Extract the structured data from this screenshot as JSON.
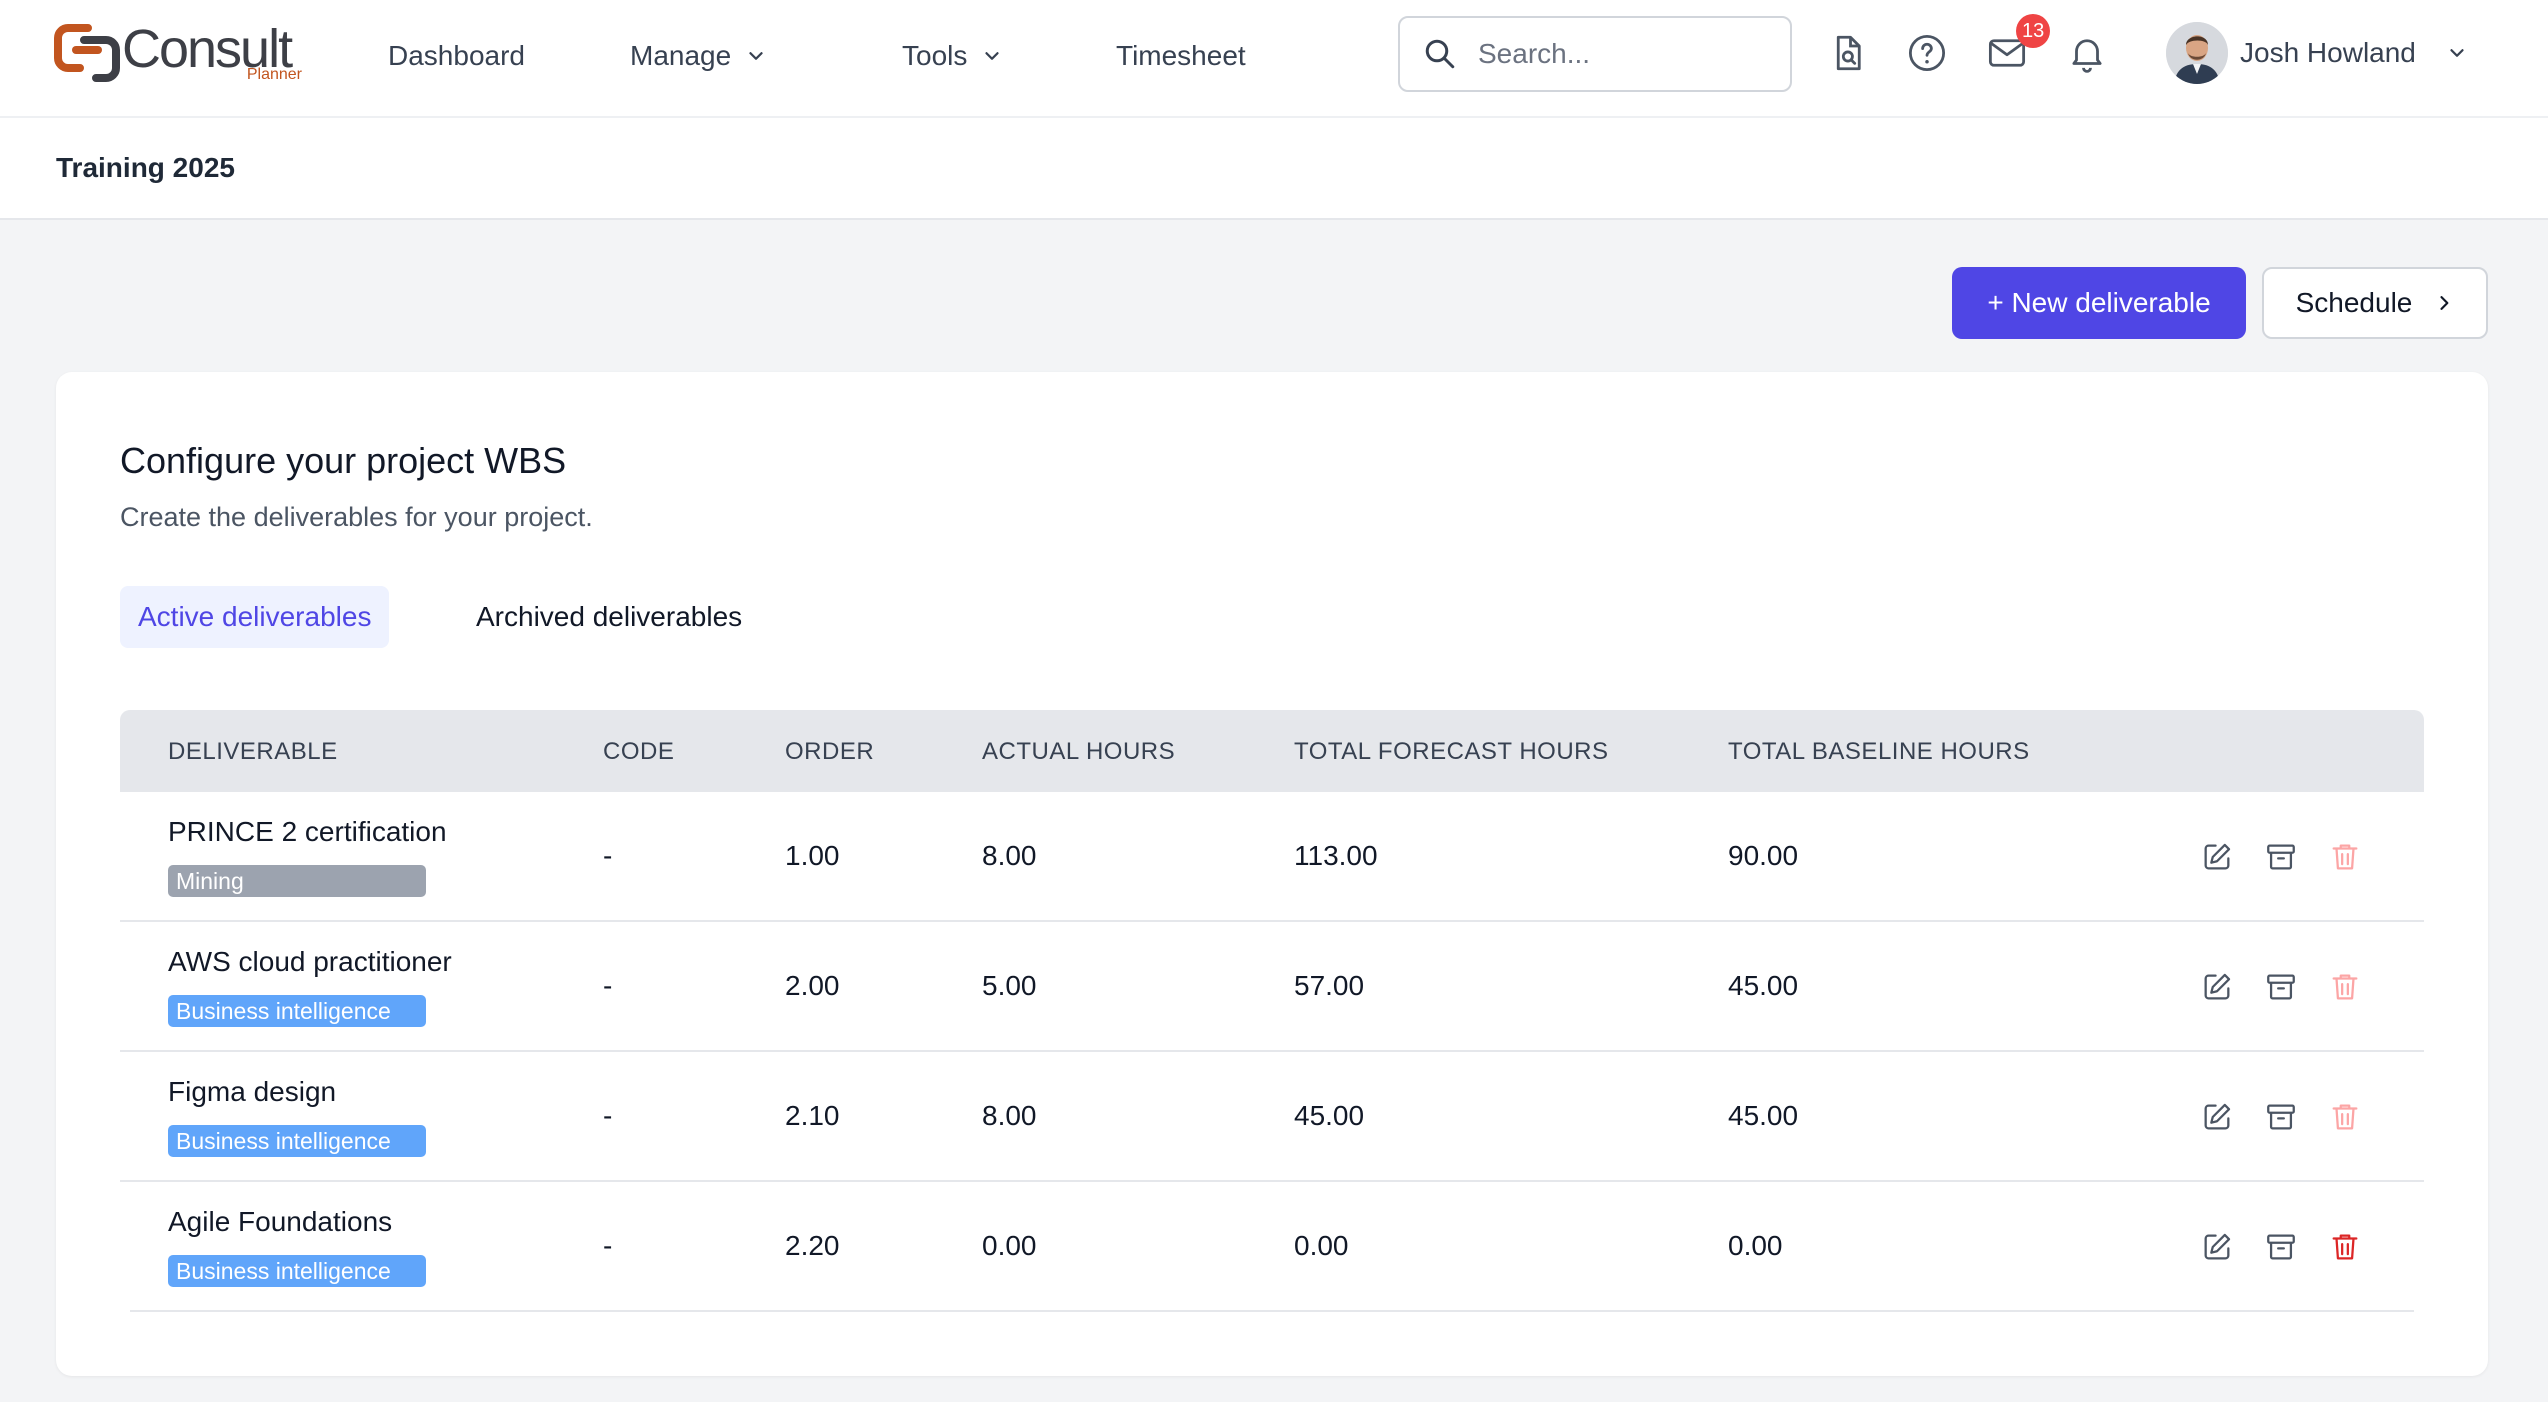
{
  "brand": {
    "name": "Consult",
    "sub": "Planner",
    "accent": "#c2551f"
  },
  "nav": {
    "dashboard": "Dashboard",
    "manage": "Manage",
    "tools": "Tools",
    "timesheet": "Timesheet"
  },
  "search": {
    "placeholder": "Search..."
  },
  "header_icons": [
    "document-search-icon",
    "help-icon",
    "mail-icon",
    "bell-icon"
  ],
  "mail_badge": "13",
  "user": {
    "name": "Josh Howland"
  },
  "project": {
    "name": "Training 2025"
  },
  "actions": {
    "new_deliverable": "+ New deliverable",
    "schedule": "Schedule"
  },
  "card": {
    "title": "Configure your project WBS",
    "subtitle": "Create the deliverables for your project."
  },
  "tabs": [
    {
      "label": "Active deliverables",
      "active": true
    },
    {
      "label": "Archived deliverables",
      "active": false
    }
  ],
  "table": {
    "headers": [
      "DELIVERABLE",
      "CODE",
      "ORDER",
      "ACTUAL HOURS",
      "TOTAL FORECAST HOURS",
      "TOTAL BASELINE HOURS"
    ],
    "rows": [
      {
        "name": "PRINCE 2 certification",
        "tag": "Mining",
        "tag_color": "#9ca3af",
        "code": "-",
        "order": "1.00",
        "actual": "8.00",
        "forecast": "113.00",
        "baseline": "90.00",
        "delete_color": "#fca5a5"
      },
      {
        "name": "AWS cloud practitioner",
        "tag": "Business intelligence",
        "tag_color": "#60a5fa",
        "code": "-",
        "order": "2.00",
        "actual": "5.00",
        "forecast": "57.00",
        "baseline": "45.00",
        "delete_color": "#fca5a5"
      },
      {
        "name": "Figma design",
        "tag": "Business intelligence",
        "tag_color": "#60a5fa",
        "code": "-",
        "order": "2.10",
        "actual": "8.00",
        "forecast": "45.00",
        "baseline": "45.00",
        "delete_color": "#fca5a5"
      },
      {
        "name": "Agile Foundations",
        "tag": "Business intelligence",
        "tag_color": "#60a5fa",
        "code": "-",
        "order": "2.20",
        "actual": "0.00",
        "forecast": "0.00",
        "baseline": "0.00",
        "delete_color": "#dc2626"
      }
    ]
  },
  "colors": {
    "primary": "#4f46e5",
    "badge": "#ef4444"
  }
}
